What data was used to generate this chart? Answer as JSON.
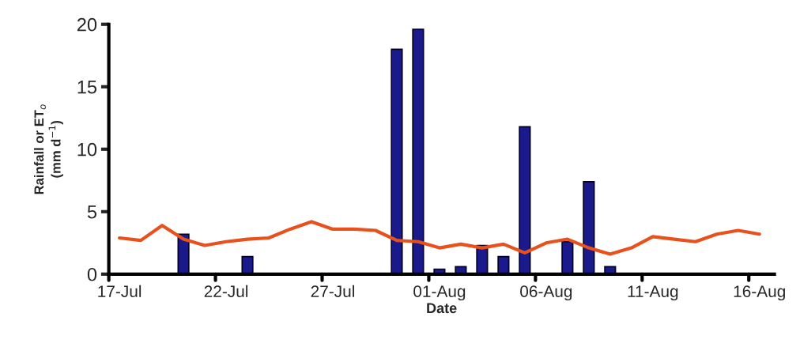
{
  "chart_data": {
    "type": "bar",
    "xlabel": "Date",
    "ylabel": "Rainfall or ET$_{o}$\n(mm d$^{−1}$)",
    "categories": [
      "17-Jul",
      null,
      null,
      null,
      null,
      "22-Jul",
      null,
      null,
      null,
      null,
      "27-Jul",
      null,
      null,
      null,
      null,
      "01-Aug",
      null,
      null,
      null,
      null,
      "06-Aug",
      null,
      null,
      null,
      null,
      "11-Aug",
      null,
      null,
      null,
      null,
      "16-Aug"
    ],
    "ylim": [
      0,
      20
    ],
    "yticks": [
      0,
      5,
      10,
      15,
      20
    ],
    "grid": false,
    "legend": false,
    "series": [
      {
        "color": "#1a1a8c",
        "values": [
          null,
          null,
          null,
          3.2,
          null,
          null,
          1.4,
          null,
          null,
          null,
          null,
          null,
          null,
          18.0,
          19.6,
          0.4,
          0.6,
          2.3,
          1.4,
          11.8,
          null,
          2.6,
          7.4,
          0.6,
          null,
          null,
          null,
          null,
          null,
          null,
          null
        ]
      },
      {
        "type": "line",
        "color": "#e8501c",
        "marker": "none",
        "line_style": "solid",
        "values": [
          2.9,
          2.7,
          3.9,
          2.8,
          2.3,
          2.6,
          2.8,
          2.9,
          3.6,
          4.2,
          3.6,
          3.6,
          3.5,
          2.7,
          2.6,
          2.1,
          2.4,
          2.1,
          2.4,
          1.7,
          2.5,
          2.8,
          2.1,
          1.6,
          2.1,
          3.0,
          2.8,
          2.6,
          3.2,
          3.5,
          3.2
        ]
      }
    ]
  }
}
